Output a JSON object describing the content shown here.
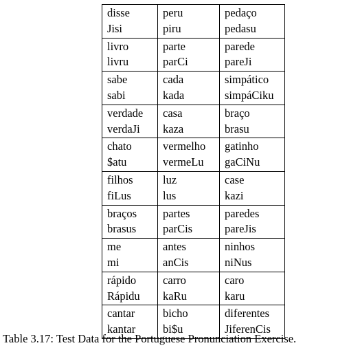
{
  "table": {
    "rows": [
      [
        [
          "disse",
          "Jisi"
        ],
        [
          "peru",
          "piru"
        ],
        [
          "pedaço",
          "pedasu"
        ]
      ],
      [
        [
          "livro",
          "livru"
        ],
        [
          "parte",
          "parCi"
        ],
        [
          "parede",
          "pareJi"
        ]
      ],
      [
        [
          "sabe",
          "sabi"
        ],
        [
          "cada",
          "kada"
        ],
        [
          "simpático",
          "simpáCiku"
        ]
      ],
      [
        [
          "verdade",
          "verdaJi"
        ],
        [
          "casa",
          "kaza"
        ],
        [
          "braço",
          "brasu"
        ]
      ],
      [
        [
          "chato",
          "$atu"
        ],
        [
          "vermelho",
          "vermeLu"
        ],
        [
          "gatinho",
          "gaCiNu"
        ]
      ],
      [
        [
          "filhos",
          "fiLus"
        ],
        [
          "luz",
          "lus"
        ],
        [
          "case",
          "kazi"
        ]
      ],
      [
        [
          "braços",
          "brasus"
        ],
        [
          "partes",
          "parCis"
        ],
        [
          "paredes",
          "pareJis"
        ]
      ],
      [
        [
          "me",
          "mi"
        ],
        [
          "antes",
          "anCis"
        ],
        [
          "ninhos",
          "niNus"
        ]
      ],
      [
        [
          "rápido",
          "Rápidu"
        ],
        [
          "carro",
          "kaRu"
        ],
        [
          "caro",
          "karu"
        ]
      ],
      [
        [
          "cantar",
          "kantar"
        ],
        [
          "bicho",
          "bi$u"
        ],
        [
          "diferentes",
          "JiferenCis"
        ]
      ]
    ]
  },
  "caption": "Table 3.17: Test Data for the Portuguese Pronunciation Exercise."
}
